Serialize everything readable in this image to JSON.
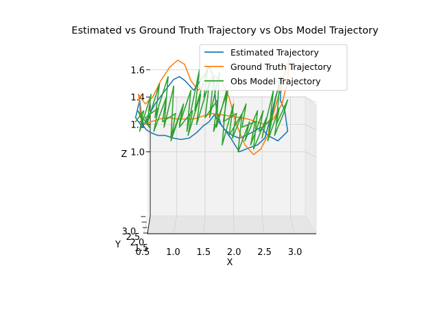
{
  "chart_data": {
    "type": "line",
    "projection": "3d",
    "title": "Estimated vs Ground Truth Trajectory vs Obs Model Trajectory",
    "xlabel": "X",
    "ylabel": "Y",
    "zlabel": "Z",
    "xlim": [
      0.2,
      3.1
    ],
    "ylim": [
      1.5,
      3.0
    ],
    "zlim": [
      0.8,
      1.72
    ],
    "x_ticks": [
      "0.5",
      "1.0",
      "1.5",
      "2.0",
      "2.5",
      "3.0"
    ],
    "y_ticks": [
      "1.5",
      "2.0",
      "2.5",
      "3.0"
    ],
    "z_ticks": [
      "1.0",
      "1.2",
      "1.4",
      "1.6"
    ],
    "grid": true,
    "legend_position": "top-right",
    "series": [
      {
        "name": "Estimated Trajectory",
        "color": "#1f77b4",
        "x": [
          0.35,
          0.28,
          0.4,
          0.62,
          0.8,
          0.95,
          1.05,
          1.15,
          1.3,
          1.48,
          1.58,
          1.65,
          1.7,
          1.78,
          1.95,
          2.1,
          2.28,
          2.42,
          2.55,
          2.65,
          2.75,
          2.85,
          2.82,
          2.9,
          2.95,
          2.78,
          2.6,
          2.48,
          2.36,
          2.22,
          2.1,
          1.98,
          1.85,
          1.74,
          1.66,
          1.57,
          1.47,
          1.35,
          1.22,
          1.08,
          0.94,
          0.8,
          0.67,
          0.55,
          0.47,
          0.4,
          0.35
        ],
        "y": [
          2.0,
          2.0,
          2.0,
          2.0,
          2.0,
          2.0,
          2.0,
          2.0,
          2.0,
          2.0,
          2.0,
          2.0,
          2.0,
          2.0,
          2.0,
          2.0,
          2.0,
          2.0,
          2.0,
          2.0,
          2.0,
          2.0,
          2.0,
          2.0,
          2.0,
          2.0,
          2.0,
          2.0,
          2.0,
          2.0,
          2.0,
          2.0,
          2.0,
          2.0,
          2.0,
          2.0,
          2.0,
          2.0,
          2.0,
          2.0,
          2.0,
          2.0,
          2.0,
          2.0,
          2.0,
          2.0,
          2.0
        ],
        "z": [
          1.38,
          1.25,
          1.18,
          1.35,
          1.45,
          1.53,
          1.55,
          1.52,
          1.45,
          1.56,
          1.62,
          1.55,
          1.3,
          1.2,
          1.1,
          1.0,
          1.03,
          1.05,
          1.1,
          1.25,
          1.42,
          1.55,
          1.38,
          1.3,
          1.15,
          1.08,
          1.12,
          1.18,
          1.15,
          1.12,
          1.1,
          1.12,
          1.16,
          1.22,
          1.27,
          1.22,
          1.19,
          1.14,
          1.1,
          1.09,
          1.1,
          1.12,
          1.12,
          1.14,
          1.16,
          1.2,
          1.38
        ]
      },
      {
        "name": "Ground Truth Trajectory",
        "color": "#ff7f0e",
        "x": [
          0.33,
          0.45,
          0.58,
          0.72,
          0.88,
          1.02,
          1.14,
          1.25,
          1.38,
          1.52,
          1.65,
          1.78,
          1.92,
          2.05,
          2.2,
          2.35,
          2.48,
          2.6,
          2.7,
          2.82,
          2.9,
          2.98,
          2.95,
          2.85,
          2.7,
          2.55,
          2.4,
          2.25,
          2.1,
          1.95,
          1.8,
          1.62,
          1.45,
          1.3,
          1.15,
          1.0,
          0.85,
          0.7,
          0.55,
          0.45,
          0.38,
          0.33
        ],
        "y": [
          2.0,
          2.0,
          2.0,
          2.0,
          2.0,
          2.0,
          2.0,
          2.0,
          2.0,
          2.0,
          2.0,
          2.0,
          2.0,
          2.0,
          2.0,
          2.0,
          2.0,
          2.0,
          2.0,
          2.0,
          2.0,
          2.0,
          2.0,
          2.0,
          2.0,
          2.0,
          2.0,
          2.0,
          2.0,
          2.0,
          2.0,
          2.0,
          2.0,
          2.0,
          2.0,
          2.0,
          2.0,
          2.0,
          2.0,
          2.0,
          2.0,
          2.0
        ],
        "z": [
          1.42,
          1.35,
          1.4,
          1.52,
          1.62,
          1.67,
          1.64,
          1.52,
          1.45,
          1.5,
          1.56,
          1.52,
          1.4,
          1.2,
          1.05,
          0.98,
          1.02,
          1.12,
          1.28,
          1.45,
          1.58,
          1.68,
          1.52,
          1.35,
          1.24,
          1.2,
          1.22,
          1.24,
          1.25,
          1.26,
          1.27,
          1.28,
          1.26,
          1.24,
          1.24,
          1.24,
          1.25,
          1.24,
          1.22,
          1.2,
          1.22,
          1.42
        ]
      },
      {
        "name": "Obs Model Trajectory",
        "color": "#2ca02c",
        "x": [
          0.28,
          0.42,
          0.35,
          0.55,
          0.48,
          0.7,
          0.62,
          0.85,
          0.78,
          0.95,
          0.9,
          1.12,
          1.05,
          1.25,
          1.18,
          1.4,
          1.32,
          1.55,
          1.48,
          1.65,
          1.58,
          1.75,
          1.7,
          1.88,
          1.8,
          2.0,
          1.92,
          2.15,
          2.08,
          2.28,
          2.2,
          2.42,
          2.35,
          2.58,
          2.5,
          2.7,
          2.62,
          2.82,
          2.75,
          2.95,
          2.88,
          2.72,
          2.8,
          2.6,
          2.68,
          2.45,
          2.52,
          2.3,
          2.38,
          2.15,
          2.22,
          1.98,
          2.05,
          1.82,
          1.9,
          1.65,
          1.72,
          1.5,
          1.58,
          1.35,
          1.42,
          1.2,
          1.28,
          1.05,
          1.12,
          0.9,
          0.98,
          0.75,
          0.82,
          0.6,
          0.68,
          0.45,
          0.52,
          0.32,
          0.4
        ],
        "y": [
          2.0,
          2.0,
          2.0,
          2.0,
          2.0,
          2.0,
          2.0,
          2.0,
          2.0,
          2.0,
          2.0,
          2.0,
          2.0,
          2.0,
          2.0,
          2.0,
          2.0,
          2.0,
          2.0,
          2.0,
          2.0,
          2.0,
          2.0,
          2.0,
          2.0,
          2.0,
          2.0,
          2.0,
          2.0,
          2.0,
          2.0,
          2.0,
          2.0,
          2.0,
          2.0,
          2.0,
          2.0,
          2.0,
          2.0,
          2.0,
          2.0,
          2.0,
          2.0,
          2.0,
          2.0,
          2.0,
          2.0,
          2.0,
          2.0,
          2.0,
          2.0,
          2.0,
          2.0,
          2.0,
          2.0,
          2.0,
          2.0,
          2.0,
          2.0,
          2.0,
          2.0,
          2.0,
          2.0,
          2.0,
          2.0,
          2.0,
          2.0,
          2.0,
          2.0,
          2.0,
          2.0,
          2.0,
          2.0,
          2.0,
          2.0
        ],
        "z": [
          1.22,
          1.3,
          1.15,
          1.42,
          1.2,
          1.5,
          1.25,
          1.55,
          1.18,
          1.48,
          1.1,
          1.35,
          1.2,
          1.45,
          1.15,
          1.6,
          1.3,
          1.62,
          1.4,
          1.55,
          1.25,
          1.58,
          1.18,
          1.45,
          1.05,
          1.35,
          1.12,
          1.28,
          1.0,
          1.22,
          1.08,
          1.3,
          1.02,
          1.25,
          1.1,
          1.45,
          1.15,
          1.55,
          1.2,
          1.38,
          1.28,
          1.12,
          1.32,
          1.08,
          1.25,
          1.15,
          1.3,
          1.05,
          1.22,
          1.18,
          1.35,
          1.1,
          1.28,
          1.22,
          1.45,
          1.15,
          1.38,
          1.25,
          1.52,
          1.2,
          1.42,
          1.12,
          1.3,
          1.18,
          1.35,
          1.08,
          1.28,
          1.22,
          1.4,
          1.15,
          1.32,
          1.25,
          1.18,
          1.3,
          1.22
        ]
      }
    ]
  }
}
